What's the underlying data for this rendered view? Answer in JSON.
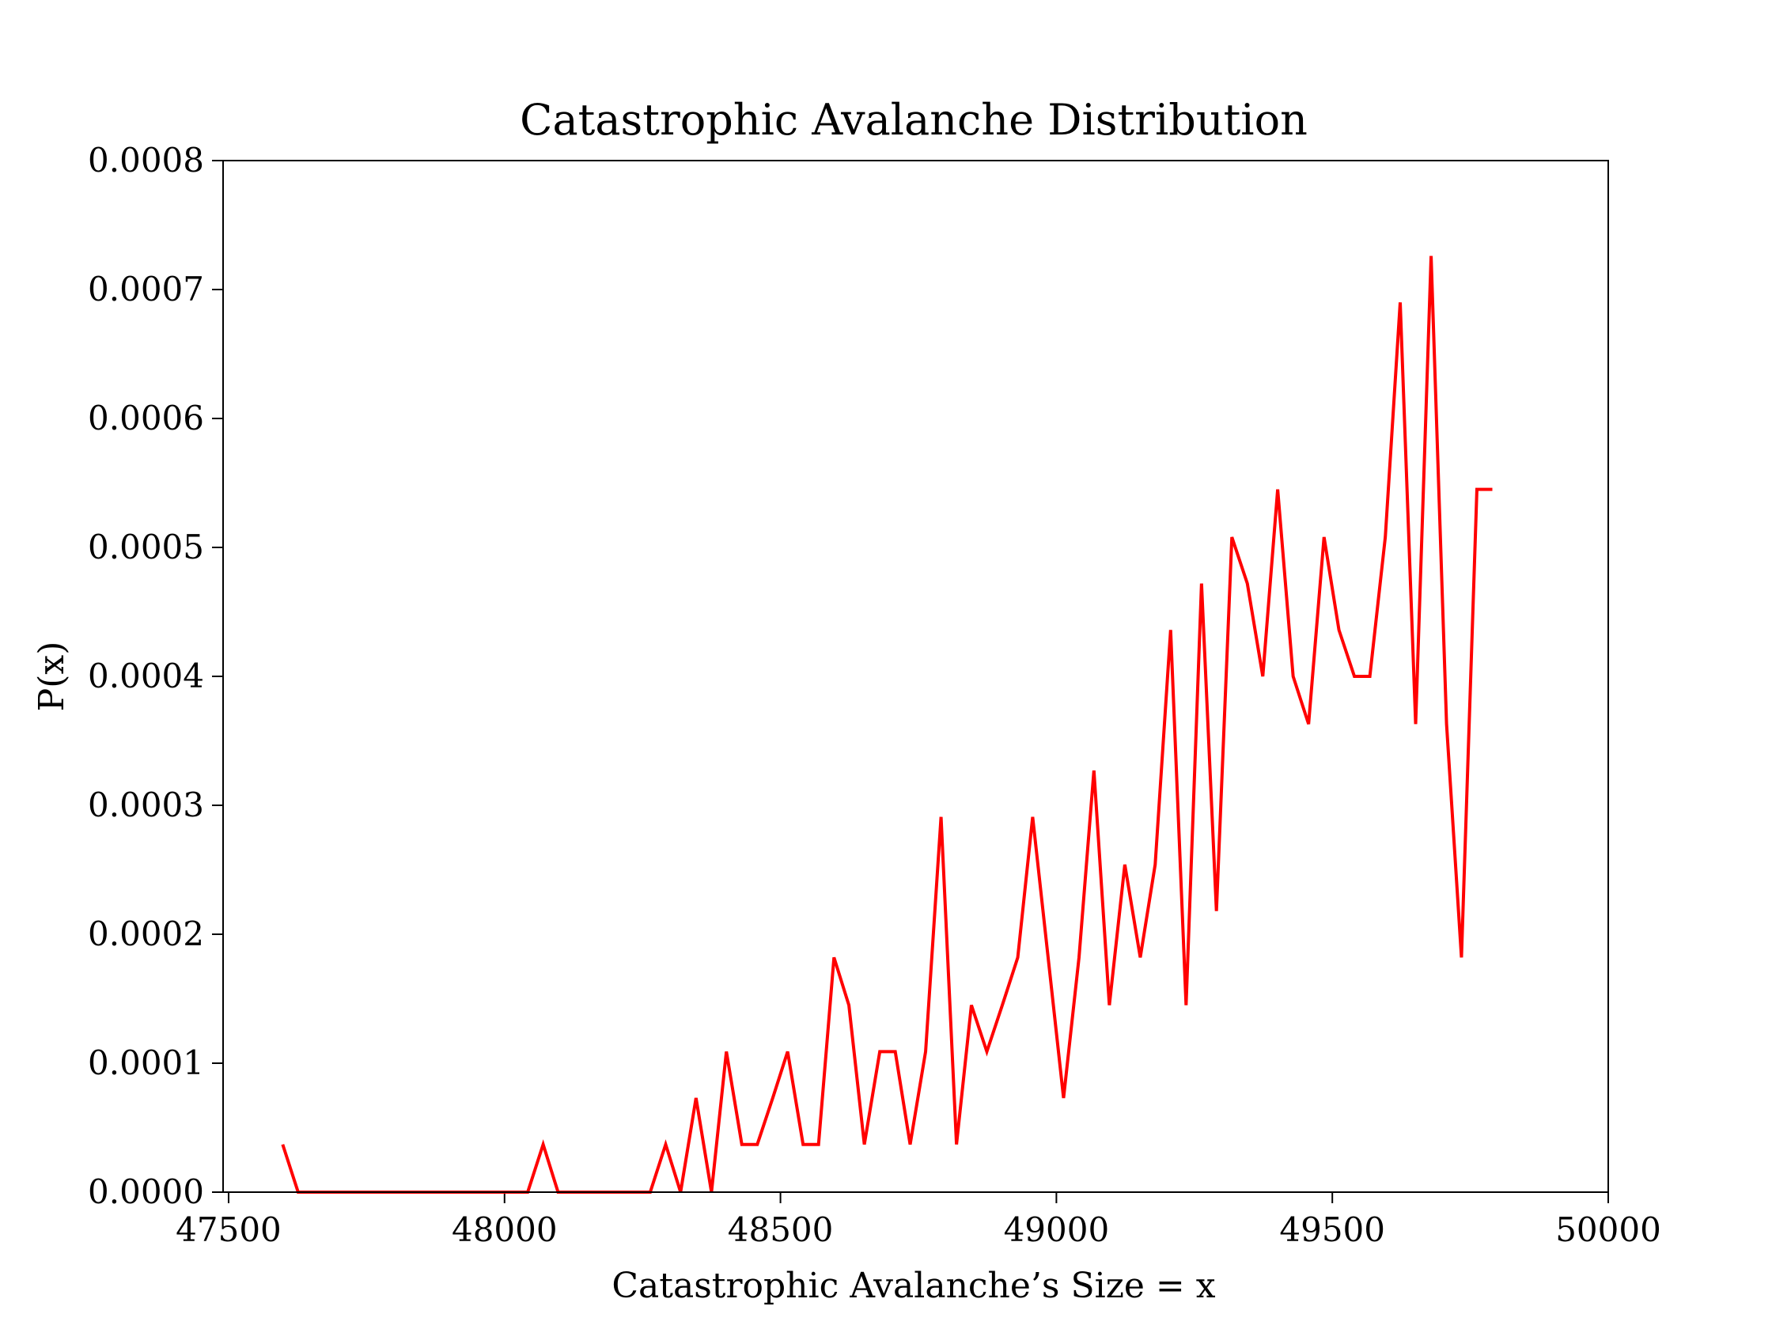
{
  "chart_data": {
    "type": "line",
    "title": "Catastrophic Avalanche Distribution",
    "xlabel": "Catastrophic Avalanche’s Size = x",
    "ylabel": "P(x)",
    "xlim": [
      47490,
      50000
    ],
    "ylim": [
      0,
      0.0008
    ],
    "xticks": [
      47500,
      48000,
      48500,
      49000,
      49500,
      50000
    ],
    "xtick_labels": [
      "47500",
      "48000",
      "48500",
      "49000",
      "49500",
      "50000"
    ],
    "yticks": [
      0,
      0.0001,
      0.0002,
      0.0003,
      0.0004,
      0.0005,
      0.0006,
      0.0007,
      0.0008
    ],
    "ytick_labels": [
      "0.0000",
      "0.0001",
      "0.0002",
      "0.0003",
      "0.0004",
      "0.0005",
      "0.0006",
      "0.0007",
      "0.0008"
    ],
    "grid": false,
    "series": [
      {
        "color": "#ff0000",
        "x": [
          47598,
          47626,
          47653,
          47681,
          47709,
          47737,
          47764,
          47792,
          47820,
          47848,
          47875,
          47903,
          47931,
          47959,
          47986,
          48014,
          48042,
          48070,
          48097,
          48125,
          48153,
          48181,
          48208,
          48236,
          48264,
          48292,
          48319,
          48347,
          48375,
          48402,
          48430,
          48458,
          48486,
          48513,
          48541,
          48569,
          48597,
          48624,
          48652,
          48680,
          48708,
          48735,
          48763,
          48791,
          48819,
          48846,
          48874,
          48902,
          48930,
          48957,
          48985,
          49013,
          49041,
          49068,
          49096,
          49124,
          49152,
          49179,
          49207,
          49235,
          49263,
          49290,
          49318,
          49346,
          49374,
          49401,
          49429,
          49457,
          49485,
          49512,
          49540,
          49568,
          49596,
          49623,
          49651,
          49679,
          49707,
          49734,
          49762,
          49790
        ],
        "y": [
          3.7e-05,
          0,
          0,
          0,
          0,
          0,
          0,
          0,
          0,
          0,
          0,
          0,
          0,
          0,
          0,
          0,
          0,
          3.7e-05,
          0,
          0,
          0,
          0,
          0,
          0,
          0,
          3.7e-05,
          0,
          7.3e-05,
          0,
          0.000109,
          3.7e-05,
          3.7e-05,
          7.3e-05,
          0.000109,
          3.7e-05,
          3.7e-05,
          0.000182,
          0.000145,
          3.7e-05,
          0.000109,
          0.000109,
          3.7e-05,
          0.000109,
          0.000291,
          3.7e-05,
          0.000145,
          0.000109,
          0.000145,
          0.000182,
          0.000291,
          0.000182,
          7.3e-05,
          0.000182,
          0.000327,
          0.000145,
          0.000254,
          0.000182,
          0.000254,
          0.000436,
          0.000145,
          0.000472,
          0.000218,
          0.000508,
          0.000472,
          0.0004,
          0.000545,
          0.0004,
          0.000363,
          0.000508,
          0.000436,
          0.0004,
          0.0004,
          0.000508,
          0.00069,
          0.000363,
          0.000726,
          0.000363,
          0.000182,
          0.000545,
          0.000545
        ]
      }
    ]
  }
}
